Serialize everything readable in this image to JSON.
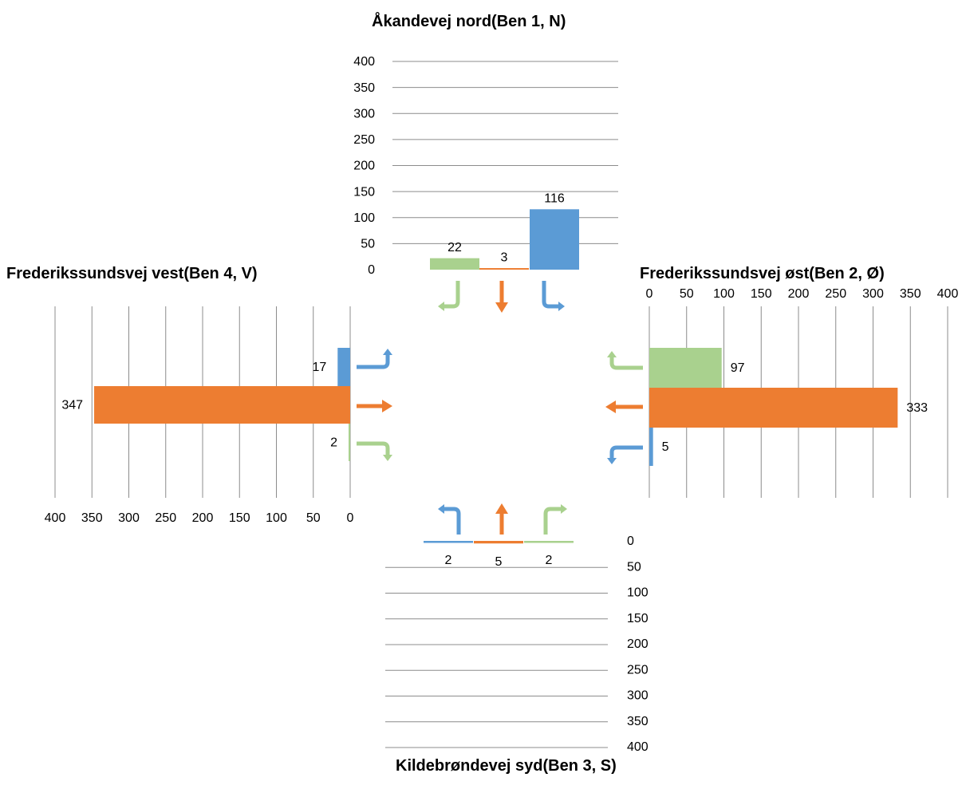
{
  "colors": {
    "right": "#5b9bd5",
    "straight": "#ed7d31",
    "left": "#a9d18e",
    "grid": "#8c8c8c"
  },
  "chart_data": [
    {
      "type": "bar",
      "leg": "north",
      "title": "Åkandevej nord(Ben 1, N)",
      "categories": [
        "left",
        "straight",
        "right"
      ],
      "values": [
        22,
        3,
        116
      ],
      "value_labels": [
        "22",
        "3",
        "116"
      ],
      "ticks": [
        "0",
        "50",
        "100",
        "150",
        "200",
        "250",
        "300",
        "350",
        "400"
      ],
      "ylim": [
        0,
        400
      ],
      "grid": true
    },
    {
      "type": "bar",
      "leg": "east",
      "title": "Frederikssundsvej øst(Ben 2, Ø)",
      "categories": [
        "left",
        "straight",
        "right"
      ],
      "values": [
        97,
        333,
        5
      ],
      "value_labels": [
        "97",
        "333",
        "5"
      ],
      "ticks": [
        "0",
        "50",
        "100",
        "150",
        "200",
        "250",
        "300",
        "350",
        "400"
      ],
      "xlim": [
        0,
        400
      ],
      "grid": true
    },
    {
      "type": "bar",
      "leg": "south",
      "title": "Kildebrøndevej syd(Ben 3, S)",
      "categories": [
        "right",
        "straight",
        "left"
      ],
      "values": [
        2,
        5,
        2
      ],
      "value_labels": [
        "2",
        "5",
        "2"
      ],
      "ticks": [
        "0",
        "50",
        "100",
        "150",
        "200",
        "250",
        "300",
        "350",
        "400"
      ],
      "ylim": [
        0,
        400
      ],
      "grid": true
    },
    {
      "type": "bar",
      "leg": "west",
      "title": "Frederikssundsvej vest(Ben 4, V)",
      "categories": [
        "right",
        "straight",
        "left"
      ],
      "values": [
        17,
        347,
        2
      ],
      "value_labels": [
        "17",
        "347",
        "2"
      ],
      "ticks": [
        "400",
        "350",
        "300",
        "250",
        "200",
        "150",
        "100",
        "50",
        "0"
      ],
      "xlim": [
        0,
        400
      ],
      "grid": true
    }
  ]
}
